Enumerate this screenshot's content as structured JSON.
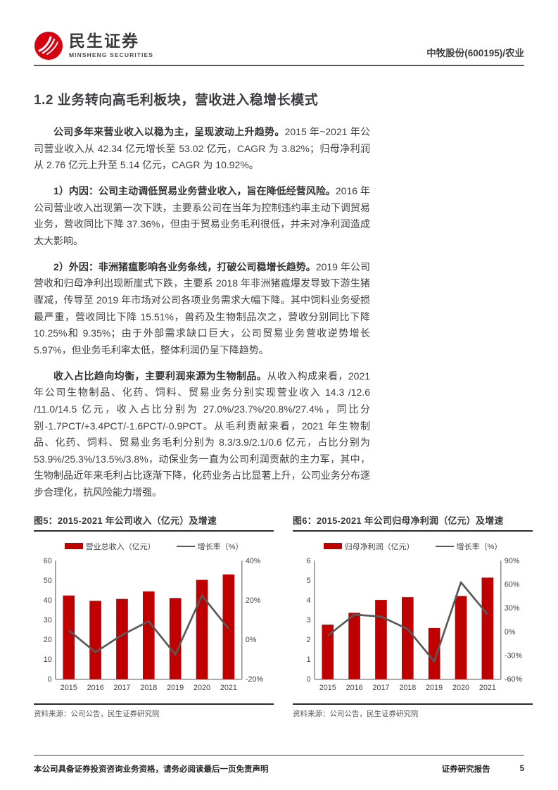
{
  "header": {
    "brand_cn": "民生证券",
    "brand_en": "MINSHENG SECURITIES",
    "stock_label": "中牧股份(600195)/农业"
  },
  "section": {
    "heading": "1.2 业务转向高毛利板块，营收进入稳增长模式"
  },
  "paragraphs": [
    {
      "lead": "公司多年来营业收入以稳为主，呈现波动上升趋势。",
      "rest": "2015 年~2021 年公司营业收入从 42.34 亿元增长至 53.02 亿元，CAGR 为 3.82%；归母净利润从 2.76 亿元上升至 5.14 亿元，CAGR 为 10.92%。"
    },
    {
      "lead": "1）内因：公司主动调低贸易业务营业收入，旨在降低经营风险。",
      "rest": "2016 年公司营业收入出现第一次下跌，主要系公司在当年为控制违约率主动下调贸易业务，营收同比下降 37.36%，但由于贸易业务毛利很低，并未对净利润造成太大影响。"
    },
    {
      "lead": "2）外因：非洲猪瘟影响各业务条线，打破公司稳增长趋势。",
      "rest": "2019 年公司营收和归母净利出现断崖式下跌，主要系 2018 年非洲猪瘟爆发导致下游生猪骤减，传导至 2019 年市场对公司各项业务需求大幅下降。其中饲料业务受损最严重，营收同比下降 15.51%，兽药及生物制品次之，营收分别同比下降 10.25%和 9.35%；由于外部需求缺口巨大，公司贸易业务营收逆势增长 5.97%，但业务毛利率太低，整体利润仍呈下降趋势。"
    },
    {
      "lead": "收入占比趋向均衡，主要利润来源为生物制品。",
      "rest": "从收入构成来看，2021 年公司生物制品、化药、饲料、贸易业务分别实现营业收入 14.3 /12.6 /11.0/14.5 亿元，收入占比分别为 27.0%/23.7%/20.8%/27.4%，同比分别-1.7PCT/+3.4PCT/-1.6PCT/-0.9PCT。从毛利贡献来看，2021 年生物制品、化药、饲料、贸易业务毛利分别为 8.3/3.9/2.1/0.6 亿元，占比分别为 53.9%/25.3%/13.5%/3.8%，动保业务一直为公司利润贡献的主力军，其中，生物制品近年来毛利占比逐渐下降，化药业务占比显著上升，公司业务分布逐步合理化，抗风险能力增强。"
    }
  ],
  "figures": [
    {
      "title": "图5：2015-2021 年公司收入（亿元）及增速",
      "legend": [
        {
          "label": "营业总收入（亿元）"
        },
        {
          "label": "增长率（%）"
        }
      ],
      "source": "资料来源：公司公告，民生证券研究院",
      "chart_data": {
        "type": "bar+line",
        "categories": [
          "2015",
          "2016",
          "2017",
          "2018",
          "2019",
          "2020",
          "2021"
        ],
        "series": [
          {
            "name": "营业总收入（亿元）",
            "type": "bar",
            "axis": "left",
            "color": "#c00000",
            "values": [
              42.34,
              39.66,
              40.61,
              44.4,
              41.07,
              50.26,
              53.02
            ]
          },
          {
            "name": "增长率（%）",
            "type": "line",
            "axis": "right",
            "color": "#595959",
            "values": [
              4.7,
              -6.3,
              2.4,
              9.3,
              -7.5,
              22.4,
              5.5
            ]
          }
        ],
        "left_axis": {
          "min": 0,
          "max": 60,
          "ticks": [
            0,
            10,
            20,
            30,
            40,
            50,
            60
          ],
          "suffix": ""
        },
        "right_axis": {
          "min": -20,
          "max": 40,
          "ticks": [
            -20,
            0,
            20,
            40
          ],
          "suffix": "%"
        },
        "grid": false,
        "legend_position": "top"
      }
    },
    {
      "title": "图6：2015-2021 年公司归母净利润（亿元）及增速",
      "legend": [
        {
          "label": "归母净利润（亿元）"
        },
        {
          "label": "增长率（%）"
        }
      ],
      "source": "资料来源：公司公告，民生证券研究院",
      "chart_data": {
        "type": "bar+line",
        "categories": [
          "2015",
          "2016",
          "2017",
          "2018",
          "2019",
          "2020",
          "2021"
        ],
        "series": [
          {
            "name": "归母净利润（亿元）",
            "type": "bar",
            "axis": "left",
            "color": "#c00000",
            "values": [
              2.76,
              3.36,
              4.01,
              4.15,
              2.59,
              4.21,
              5.14
            ]
          },
          {
            "name": "增长率（%）",
            "type": "line",
            "axis": "right",
            "color": "#595959",
            "values": [
              -5.0,
              21.7,
              19.3,
              3.5,
              -37.6,
              62.6,
              22.1
            ]
          }
        ],
        "left_axis": {
          "min": 0,
          "max": 6,
          "ticks": [
            0,
            1,
            2,
            3,
            4,
            5,
            6
          ],
          "suffix": ""
        },
        "right_axis": {
          "min": -60,
          "max": 90,
          "ticks": [
            -60,
            -30,
            0,
            30,
            60,
            90
          ],
          "suffix": "%"
        },
        "grid": false,
        "legend_position": "top"
      }
    }
  ],
  "footer": {
    "disclaimer": "本公司具备证券投资咨询业务资格，请务必阅读最后一页免责声明",
    "report_type": "证券研究报告",
    "page_number": "5"
  },
  "colors": {
    "accent_red": "#c00000",
    "logo_red": "#d7000f",
    "line_gray": "#595959",
    "rule_dark": "#2b2b2b"
  }
}
